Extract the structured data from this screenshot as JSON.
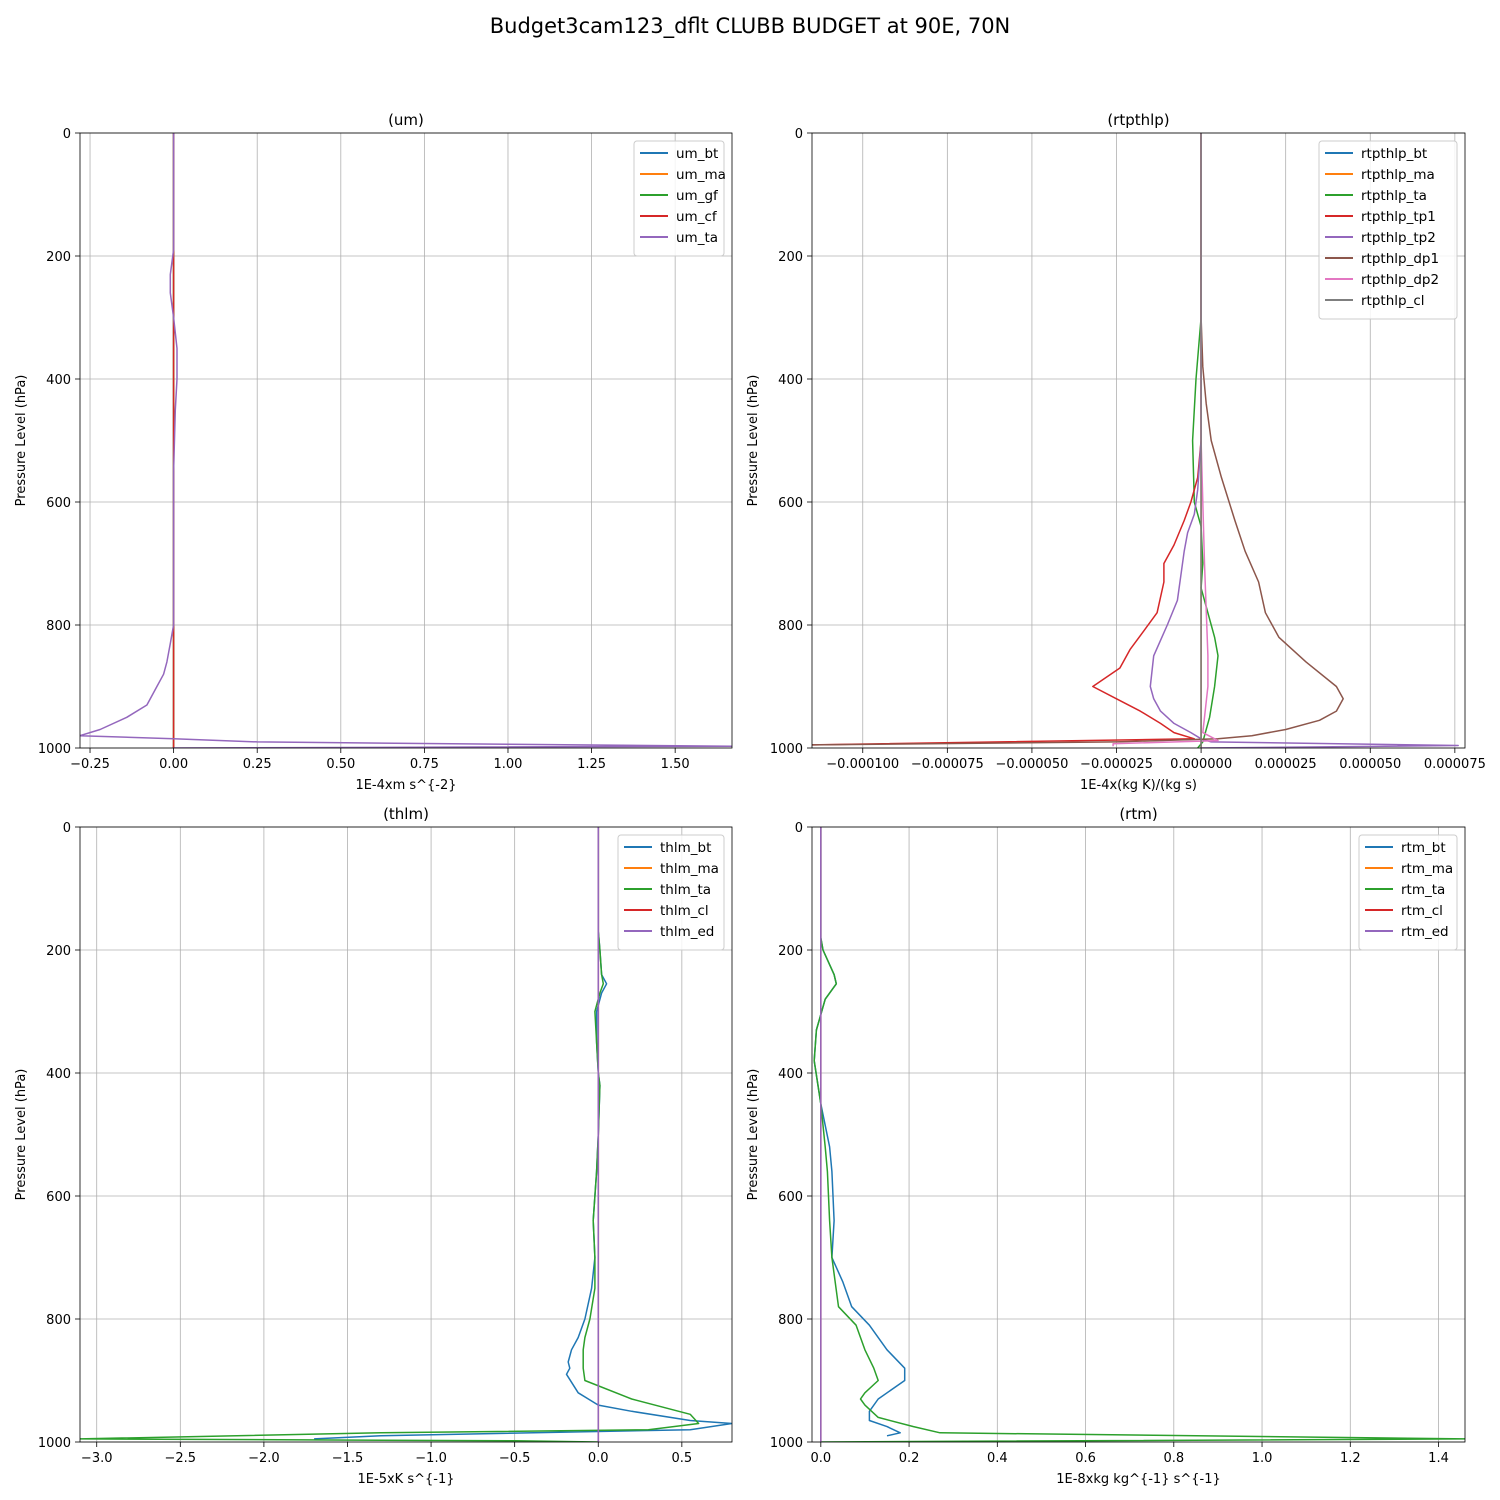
{
  "figure_title": "Budget3cam123_dflt CLUBB BUDGET at 90E, 70N",
  "chart_data": [
    {
      "type": "line",
      "title": "(um)",
      "xlabel": "1E-4xm s^{-2}",
      "ylabel": "Pressure Level (hPa)",
      "xlim": [
        -0.28,
        1.67
      ],
      "ylim": [
        1000,
        0
      ],
      "xticks": [
        -0.25,
        0.0,
        0.25,
        0.5,
        0.75,
        1.0,
        1.25,
        1.5
      ],
      "xtick_labels": [
        "−0.25",
        "0.00",
        "0.25",
        "0.50",
        "0.75",
        "1.00",
        "1.25",
        "1.50"
      ],
      "yticks": [
        0,
        200,
        400,
        600,
        800,
        1000
      ],
      "ytick_labels": [
        "0",
        "200",
        "400",
        "600",
        "800",
        "1000"
      ],
      "grid": true,
      "legend_position": "top-right",
      "series": [
        {
          "name": "um_bt",
          "color": "#1f77b4",
          "x": [
            0,
            0,
            0,
            0
          ],
          "y": [
            0,
            500,
            990,
            1000
          ]
        },
        {
          "name": "um_ma",
          "color": "#ff7f0e",
          "x": [
            0,
            0,
            0,
            0
          ],
          "y": [
            0,
            500,
            990,
            1000
          ]
        },
        {
          "name": "um_gf",
          "color": "#2ca02c",
          "x": [
            0,
            0,
            0,
            0
          ],
          "y": [
            0,
            500,
            990,
            1000
          ]
        },
        {
          "name": "um_cf",
          "color": "#d62728",
          "x": [
            0,
            0,
            0,
            0
          ],
          "y": [
            0,
            500,
            990,
            1000
          ]
        },
        {
          "name": "um_ta",
          "color": "#9467bd",
          "x": [
            0.0,
            0.0,
            0.0,
            -0.01,
            -0.01,
            0.0,
            0.01,
            0.01,
            0.005,
            0.0,
            0.0,
            0.0,
            0.0,
            -0.01,
            -0.02,
            -0.03,
            -0.05,
            -0.08,
            -0.14,
            -0.22,
            -0.28,
            0.0,
            0.25,
            1.0,
            1.67,
            0.0
          ],
          "y": [
            0,
            100,
            190,
            230,
            260,
            300,
            350,
            400,
            450,
            550,
            650,
            750,
            800,
            830,
            860,
            880,
            900,
            930,
            950,
            970,
            980,
            985,
            990,
            994,
            997,
            1000
          ]
        }
      ]
    },
    {
      "type": "line",
      "title": "(rtpthlp)",
      "xlabel": "1E-4x(kg K)/(kg s)",
      "ylabel": "Pressure Level (hPa)",
      "xlim": [
        -0.000115,
        7.8e-05
      ],
      "ylim": [
        1000,
        0
      ],
      "xticks": [
        -0.0001,
        -7.5e-05,
        -5e-05,
        -2.5e-05,
        0.0,
        2.5e-05,
        5e-05,
        7.5e-05
      ],
      "xtick_labels": [
        "−0.000100",
        "−0.000075",
        "−0.000050",
        "−0.000025",
        "0.000000",
        "0.000025",
        "0.000050",
        "0.000075"
      ],
      "yticks": [
        0,
        200,
        400,
        600,
        800,
        1000
      ],
      "ytick_labels": [
        "0",
        "200",
        "400",
        "600",
        "800",
        "1000"
      ],
      "grid": true,
      "legend_position": "top-right",
      "series": [
        {
          "name": "rtpthlp_bt",
          "color": "#1f77b4",
          "x": [
            0,
            0,
            0
          ],
          "y": [
            0,
            500,
            1000
          ]
        },
        {
          "name": "rtpthlp_ma",
          "color": "#ff7f0e",
          "x": [
            0,
            0,
            0
          ],
          "y": [
            0,
            500,
            1000
          ]
        },
        {
          "name": "rtpthlp_ta",
          "color": "#2ca02c",
          "x": [
            0,
            0,
            -1.5e-06,
            -2.5e-06,
            -2e-06,
            0,
            5e-07,
            0,
            4e-06,
            5e-06,
            4e-06,
            2.5e-06,
            1e-06,
            5e-07,
            -1e-06
          ],
          "y": [
            0,
            300,
            400,
            500,
            600,
            640,
            700,
            740,
            820,
            850,
            900,
            950,
            980,
            990,
            1000
          ]
        },
        {
          "name": "rtpthlp_tp1",
          "color": "#d62728",
          "x": [
            0,
            0,
            -1e-06,
            -3e-06,
            -5e-06,
            -8e-06,
            -1.1e-05,
            -1.1e-05,
            -1.3e-05,
            -1.7e-05,
            -2.1e-05,
            -2.4e-05,
            -3.2e-05,
            -2.5e-05,
            -1.8e-05,
            -1.2e-05,
            -8e-06,
            -2e-06,
            -0.000115
          ],
          "y": [
            0,
            500,
            560,
            600,
            630,
            670,
            700,
            730,
            780,
            810,
            840,
            870,
            900,
            920,
            940,
            960,
            975,
            985,
            995
          ]
        },
        {
          "name": "rtpthlp_tp2",
          "color": "#9467bd",
          "x": [
            0,
            0,
            -1e-06,
            -2e-06,
            -4e-06,
            -5e-06,
            -6e-06,
            -7e-06,
            -1e-05,
            -1.4e-05,
            -1.5e-05,
            -1.4e-05,
            -1.2e-05,
            -8e-06,
            -3e-06,
            0,
            3e-06,
            7.6e-05,
            0
          ],
          "y": [
            0,
            500,
            580,
            620,
            650,
            680,
            720,
            760,
            800,
            850,
            900,
            920,
            940,
            960,
            975,
            985,
            990,
            996,
            1000
          ]
        },
        {
          "name": "rtpthlp_dp1",
          "color": "#8c564b",
          "x": [
            0,
            0,
            5e-07,
            1.5e-06,
            3e-06,
            6e-06,
            1e-05,
            1.3e-05,
            1.7e-05,
            1.9e-05,
            2.3e-05,
            3.1e-05,
            4e-05,
            4.2e-05,
            4e-05,
            3.5e-05,
            2.5e-05,
            1.5e-05,
            5e-06,
            -2.5e-05,
            -0.000115
          ],
          "y": [
            0,
            300,
            380,
            440,
            500,
            560,
            630,
            680,
            730,
            780,
            820,
            860,
            900,
            920,
            940,
            955,
            970,
            980,
            985,
            990,
            995
          ]
        },
        {
          "name": "rtpthlp_dp2",
          "color": "#e377c2",
          "x": [
            0,
            0,
            1e-06,
            2e-06,
            2e-06,
            1e-06,
            5e-07,
            5e-06,
            -2.6e-05,
            -2.6e-05
          ],
          "y": [
            0,
            500,
            700,
            850,
            900,
            950,
            975,
            988,
            993,
            997
          ]
        },
        {
          "name": "rtpthlp_cl",
          "color": "#7f7f7f",
          "x": [
            0,
            0,
            0
          ],
          "y": [
            0,
            500,
            1000
          ]
        }
      ]
    },
    {
      "type": "line",
      "title": "(thlm)",
      "xlabel": "1E-5xK s^{-1}",
      "ylabel": "Pressure Level (hPa)",
      "xlim": [
        -3.1,
        0.8
      ],
      "ylim": [
        1000,
        0
      ],
      "xticks": [
        -3.0,
        -2.5,
        -2.0,
        -1.5,
        -1.0,
        -0.5,
        0.0,
        0.5
      ],
      "xtick_labels": [
        "−3.0",
        "−2.5",
        "−2.0",
        "−1.5",
        "−1.0",
        "−0.5",
        "0.0",
        "0.5"
      ],
      "yticks": [
        0,
        200,
        400,
        600,
        800,
        1000
      ],
      "ytick_labels": [
        "0",
        "200",
        "400",
        "600",
        "800",
        "1000"
      ],
      "grid": true,
      "legend_position": "top-right",
      "series": [
        {
          "name": "thlm_bt",
          "color": "#1f77b4",
          "x": [
            0,
            0,
            0.01,
            0.02,
            0.05,
            0.02,
            -0.01,
            -0.01,
            0,
            0.01,
            0,
            -0.01,
            -0.02,
            -0.03,
            -0.02,
            -0.04,
            -0.08,
            -0.12,
            -0.16,
            -0.18,
            -0.17,
            -0.19,
            -0.12,
            0,
            0.2,
            0.55,
            0.8,
            0.55,
            -1.3,
            -1.7
          ],
          "y": [
            0,
            170,
            200,
            240,
            255,
            270,
            300,
            350,
            400,
            420,
            500,
            560,
            600,
            640,
            700,
            750,
            800,
            830,
            850,
            870,
            880,
            890,
            920,
            940,
            950,
            965,
            970,
            980,
            990,
            995
          ]
        },
        {
          "name": "thlm_ma",
          "color": "#ff7f0e",
          "x": [
            0,
            0,
            0
          ],
          "y": [
            0,
            500,
            1000
          ]
        },
        {
          "name": "thlm_ta",
          "color": "#2ca02c",
          "x": [
            0,
            0,
            0.01,
            0.02,
            0.03,
            0.01,
            -0.02,
            -0.01,
            0,
            0.01,
            0,
            -0.01,
            -0.02,
            -0.03,
            -0.02,
            -0.02,
            -0.05,
            -0.08,
            -0.09,
            -0.09,
            -0.08,
            0.2,
            0.55,
            0.6,
            0.3,
            -1.3,
            -3.1,
            -0.5,
            0
          ],
          "y": [
            0,
            170,
            200,
            240,
            255,
            270,
            300,
            350,
            400,
            420,
            500,
            560,
            600,
            640,
            700,
            750,
            800,
            830,
            850,
            880,
            900,
            930,
            955,
            970,
            980,
            985,
            995,
            998,
            1000
          ]
        },
        {
          "name": "thlm_cl",
          "color": "#d62728",
          "x": [
            0,
            0,
            0
          ],
          "y": [
            0,
            500,
            1000
          ]
        },
        {
          "name": "thlm_ed",
          "color": "#9467bd",
          "x": [
            0,
            0,
            0
          ],
          "y": [
            0,
            500,
            1000
          ]
        }
      ]
    },
    {
      "type": "line",
      "title": "(rtm)",
      "xlabel": "1E-8xkg kg^{-1} s^{-1}",
      "ylabel": "Pressure Level (hPa)",
      "xlim": [
        -0.02,
        1.46
      ],
      "ylim": [
        1000,
        0
      ],
      "xticks": [
        0.0,
        0.2,
        0.4,
        0.6,
        0.8,
        1.0,
        1.2,
        1.4
      ],
      "xtick_labels": [
        "0.0",
        "0.2",
        "0.4",
        "0.6",
        "0.8",
        "1.0",
        "1.2",
        "1.4"
      ],
      "yticks": [
        0,
        200,
        400,
        600,
        800,
        1000
      ],
      "ytick_labels": [
        "0",
        "200",
        "400",
        "600",
        "800",
        "1000"
      ],
      "grid": true,
      "legend_position": "top-right",
      "series": [
        {
          "name": "rtm_bt",
          "color": "#1f77b4",
          "x": [
            0,
            0,
            0.005,
            0.03,
            0.035,
            0.01,
            -0.01,
            -0.015,
            0,
            0.02,
            0.025,
            0.03,
            0.025,
            0.05,
            0.07,
            0.11,
            0.15,
            0.19,
            0.19,
            0.13,
            0.11,
            0.11,
            0.15,
            0.18,
            0.15
          ],
          "y": [
            0,
            180,
            200,
            240,
            255,
            280,
            330,
            380,
            450,
            520,
            560,
            640,
            700,
            740,
            780,
            810,
            850,
            880,
            900,
            930,
            950,
            965,
            975,
            985,
            990
          ]
        },
        {
          "name": "rtm_ma",
          "color": "#ff7f0e",
          "x": [
            0,
            0,
            0
          ],
          "y": [
            0,
            500,
            1000
          ]
        },
        {
          "name": "rtm_ta",
          "color": "#2ca02c",
          "x": [
            0,
            0,
            0.005,
            0.03,
            0.035,
            0.01,
            -0.01,
            -0.015,
            0,
            0.01,
            0.015,
            0.02,
            0.025,
            0.04,
            0.08,
            0.1,
            0.12,
            0.13,
            0.1,
            0.09,
            0.1,
            0.13,
            0.21,
            0.27,
            1.46,
            0.0
          ],
          "y": [
            0,
            180,
            200,
            240,
            255,
            280,
            330,
            380,
            450,
            520,
            560,
            640,
            700,
            780,
            810,
            850,
            880,
            900,
            920,
            930,
            940,
            960,
            975,
            985,
            995,
            1000
          ]
        },
        {
          "name": "rtm_cl",
          "color": "#d62728",
          "x": [
            0,
            0,
            0
          ],
          "y": [
            0,
            500,
            1000
          ]
        },
        {
          "name": "rtm_ed",
          "color": "#9467bd",
          "x": [
            0,
            0,
            0
          ],
          "y": [
            0,
            500,
            1000
          ]
        }
      ]
    }
  ]
}
